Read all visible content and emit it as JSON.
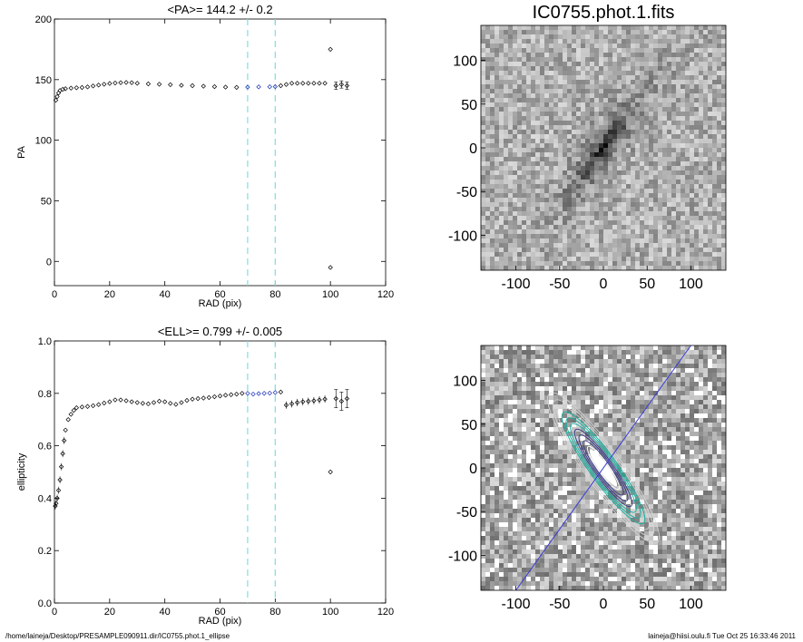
{
  "footer": {
    "path": "/home/laineja/Desktop/PRESAMPLE090911.dir/IC0755.phot.1_ellipse",
    "user_time": "laineja@hiisi.oulu.fi  Tue Oct 25 16:33:46 2011"
  },
  "colors": {
    "markers": "#000000",
    "highlight_markers": "#1c2fb8",
    "range_lines": "#7fdede",
    "major_axis_line": "#3b3bd6",
    "contours_inner": "#3a3a8a",
    "contours_mid": "#20b0a0",
    "contours_outer": "#d8d8d8"
  },
  "chart_data": [
    {
      "type": "scatter",
      "title": "<PA>= 144.2 +/-   0.2",
      "xlabel": "RAD (pix)",
      "ylabel": "PA",
      "xlim": [
        0,
        120
      ],
      "ylim": [
        -20,
        200
      ],
      "xticks": [
        0,
        20,
        40,
        60,
        80,
        100,
        120
      ],
      "yticks": [
        0,
        50,
        100,
        150,
        200
      ],
      "range_lines_x": [
        70,
        80
      ],
      "highlight_range": [
        70,
        80
      ],
      "profile": [
        [
          0.5,
          133
        ],
        [
          1,
          136
        ],
        [
          1.5,
          139
        ],
        [
          2,
          141
        ],
        [
          3,
          142
        ],
        [
          4,
          142.5
        ],
        [
          6,
          143
        ],
        [
          8,
          143.3
        ],
        [
          10,
          143.5
        ],
        [
          12,
          144
        ],
        [
          14,
          144.8
        ],
        [
          16,
          145.5
        ],
        [
          18,
          146.2
        ],
        [
          20,
          146.8
        ],
        [
          22,
          147.2
        ],
        [
          24,
          147.5
        ],
        [
          26,
          147.7
        ],
        [
          28,
          147.5
        ],
        [
          30,
          147
        ],
        [
          34,
          146.5
        ],
        [
          38,
          146.2
        ],
        [
          42,
          145.8
        ],
        [
          46,
          145.3
        ],
        [
          50,
          145
        ],
        [
          54,
          144.6
        ],
        [
          58,
          144.2
        ],
        [
          62,
          143.8
        ],
        [
          66,
          143.6
        ],
        [
          70,
          143.8
        ],
        [
          74,
          144
        ],
        [
          78,
          144.1
        ],
        [
          80,
          144.2
        ]
      ],
      "outer_points": [
        [
          82,
          145
        ],
        [
          84,
          146
        ],
        [
          86,
          147
        ],
        [
          88,
          147
        ],
        [
          90,
          147
        ],
        [
          92,
          147
        ],
        [
          94,
          147
        ],
        [
          96,
          147
        ],
        [
          98,
          147
        ]
      ],
      "outliers": [
        [
          100,
          175
        ],
        [
          100,
          -5
        ],
        [
          102,
          145
        ],
        [
          104,
          146
        ],
        [
          106,
          145
        ]
      ]
    },
    {
      "type": "scatter",
      "title": "<ELL>= 0.799 +/-  0.005",
      "xlabel": "RAD (pix)",
      "ylabel": "ellipticity",
      "xlim": [
        0,
        120
      ],
      "ylim": [
        0,
        1
      ],
      "xticks": [
        0,
        20,
        40,
        60,
        80,
        100,
        120
      ],
      "yticks": [
        "0.0",
        "0.2",
        "0.4",
        "0.6",
        "0.8",
        "1.0"
      ],
      "range_lines_x": [
        70,
        80
      ],
      "highlight_range": [
        70,
        80
      ],
      "profile": [
        [
          0.3,
          0.37
        ],
        [
          0.6,
          0.38
        ],
        [
          1,
          0.4
        ],
        [
          1.5,
          0.43
        ],
        [
          2,
          0.47
        ],
        [
          2.5,
          0.52
        ],
        [
          3,
          0.57
        ],
        [
          3.5,
          0.62
        ],
        [
          4,
          0.66
        ],
        [
          5,
          0.7
        ],
        [
          6,
          0.72
        ],
        [
          7,
          0.735
        ],
        [
          8,
          0.745
        ],
        [
          10,
          0.748
        ],
        [
          12,
          0.75
        ],
        [
          14,
          0.753
        ],
        [
          16,
          0.757
        ],
        [
          18,
          0.763
        ],
        [
          20,
          0.768
        ],
        [
          22,
          0.775
        ],
        [
          24,
          0.775
        ],
        [
          26,
          0.772
        ],
        [
          28,
          0.768
        ],
        [
          30,
          0.765
        ],
        [
          32,
          0.762
        ],
        [
          34,
          0.76
        ],
        [
          36,
          0.765
        ],
        [
          38,
          0.77
        ],
        [
          40,
          0.768
        ],
        [
          42,
          0.762
        ],
        [
          44,
          0.758
        ],
        [
          46,
          0.765
        ],
        [
          48,
          0.773
        ],
        [
          50,
          0.778
        ],
        [
          52,
          0.78
        ],
        [
          54,
          0.782
        ],
        [
          56,
          0.784
        ],
        [
          58,
          0.787
        ],
        [
          60,
          0.79
        ],
        [
          62,
          0.793
        ],
        [
          64,
          0.795
        ],
        [
          66,
          0.797
        ],
        [
          68,
          0.8
        ],
        [
          70,
          0.8
        ],
        [
          72,
          0.797
        ],
        [
          74,
          0.799
        ],
        [
          76,
          0.8
        ],
        [
          78,
          0.801
        ],
        [
          80,
          0.803
        ],
        [
          82,
          0.805
        ]
      ],
      "outer_points": [
        [
          84,
          0.755
        ],
        [
          86,
          0.76
        ],
        [
          88,
          0.765
        ],
        [
          90,
          0.768
        ],
        [
          92,
          0.77
        ],
        [
          94,
          0.772
        ],
        [
          96,
          0.775
        ],
        [
          98,
          0.778
        ]
      ],
      "outliers": [
        [
          100,
          0.5
        ],
        [
          102,
          0.78
        ],
        [
          104,
          0.77
        ],
        [
          106,
          0.78
        ]
      ]
    },
    {
      "type": "heatmap",
      "title": "IC0755.phot.1.fits",
      "xlim": [
        -140,
        140
      ],
      "ylim": [
        -140,
        140
      ],
      "xticks": [
        -100,
        -50,
        0,
        50,
        100
      ],
      "yticks": [
        -100,
        -50,
        0,
        50,
        100
      ],
      "galaxy": {
        "center": [
          0,
          0
        ],
        "position_angle_deg": 144.2,
        "ellipticity": 0.799
      }
    },
    {
      "type": "heatmap",
      "title": "",
      "xlim": [
        -140,
        140
      ],
      "ylim": [
        -140,
        140
      ],
      "xticks": [
        -100,
        -50,
        0,
        50,
        100
      ],
      "yticks": [
        -100,
        -50,
        0,
        50,
        100
      ],
      "major_axis_line": [
        [
          -100,
          -140
        ],
        [
          100,
          140
        ]
      ],
      "galaxy": {
        "center": [
          0,
          0
        ],
        "position_angle_deg": 144.2,
        "ellipticity": 0.799
      }
    }
  ]
}
